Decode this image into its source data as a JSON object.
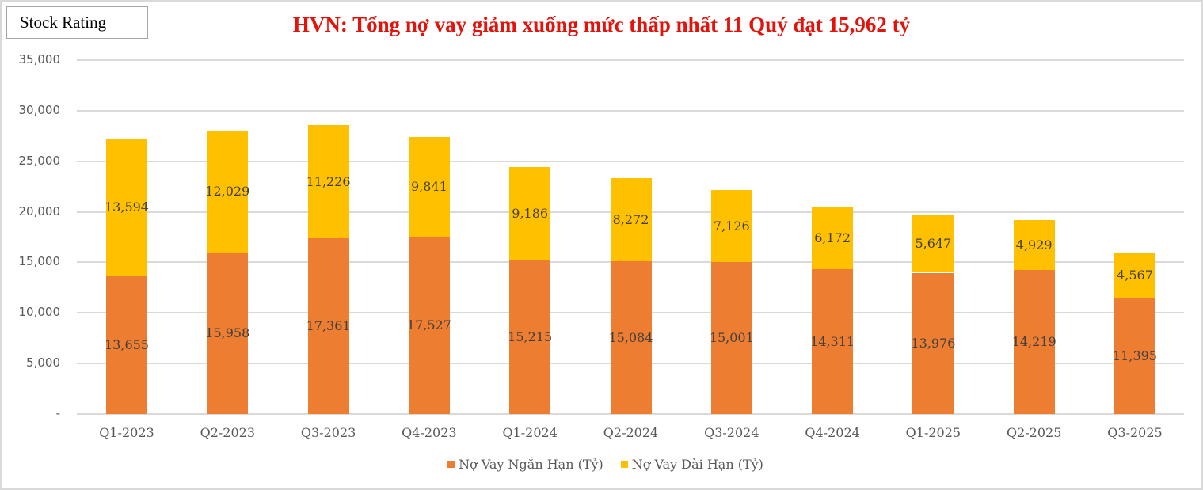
{
  "header": {
    "badge": "Stock Rating",
    "title": "HVN: Tổng nợ vay giảm xuống mức thấp nhất 11 Quý đạt 15,962 tỷ"
  },
  "colors": {
    "title": "#e3120b",
    "short_term": "#ed7d31",
    "long_term": "#ffc000",
    "grid": "#d9d9d9"
  },
  "axis": {
    "y_ticks": [
      "35,000",
      "30,000",
      "25,000",
      "20,000",
      "15,000",
      "10,000",
      "5,000",
      "-"
    ]
  },
  "legend": {
    "items": [
      {
        "label": "Nợ Vay Ngắn Hạn (Tỷ)",
        "color": "#ed7d31"
      },
      {
        "label": "Nợ Vay Dài Hạn (Tỷ)",
        "color": "#ffc000"
      }
    ]
  },
  "chart_data": {
    "type": "bar",
    "stacked": true,
    "title": "HVN: Tổng nợ vay giảm xuống mức thấp nhất 11 Quý đạt 15,962 tỷ",
    "xlabel": "",
    "ylabel": "",
    "ylim": [
      0,
      35000
    ],
    "y_ticks": [
      0,
      5000,
      10000,
      15000,
      20000,
      25000,
      30000,
      35000
    ],
    "grid": true,
    "legend_position": "bottom",
    "categories": [
      "Q1-2023",
      "Q2-2023",
      "Q3-2023",
      "Q4-2023",
      "Q1-2024",
      "Q2-2024",
      "Q3-2024",
      "Q4-2024",
      "Q1-2025",
      "Q2-2025",
      "Q3-2025"
    ],
    "series": [
      {
        "name": "Nợ Vay Ngắn Hạn (Tỷ)",
        "color": "#ed7d31",
        "values": [
          13655,
          15958,
          17361,
          17527,
          15215,
          15084,
          15001,
          14311,
          13976,
          14219,
          11395
        ],
        "labels": [
          "13,655",
          "15,958",
          "17,361",
          "17,527",
          "15,215",
          "15,084",
          "15,001",
          "14,311",
          "13,976",
          "14,219",
          "11,395"
        ]
      },
      {
        "name": "Nợ Vay Dài Hạn (Tỷ)",
        "color": "#ffc000",
        "values": [
          13594,
          12029,
          11226,
          9841,
          9186,
          8272,
          7126,
          6172,
          5647,
          4929,
          4567
        ],
        "labels": [
          "13,594",
          "12,029",
          "11,226",
          "9,841",
          "9,186",
          "8,272",
          "7,126",
          "6,172",
          "5,647",
          "4,929",
          "4,567"
        ]
      }
    ]
  }
}
